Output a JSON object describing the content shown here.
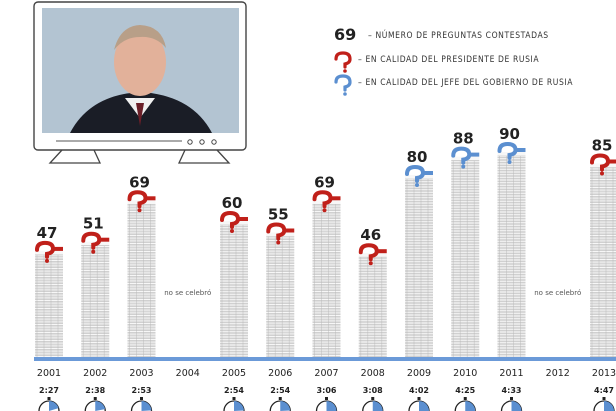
{
  "legend": {
    "number_example": "69",
    "count_label": "– NÚMERO DE PREGUNTAS CONTESTADAS",
    "president_label": "– EN CALIDAD DEL PRESIDENTE DE RUSIA",
    "government_label": "– EN CALIDAD DEL JEFE DEL GOBIERNO DE RUSIA"
  },
  "colors": {
    "president": "#c0201a",
    "government": "#5b8fd0",
    "baseline": "#6b9ad8",
    "stack_line": "#b8b8b8"
  },
  "chart_data": {
    "type": "bar",
    "categories": [
      "2001",
      "2002",
      "2003",
      "2004",
      "2005",
      "2006",
      "2007",
      "2008",
      "2009",
      "2010",
      "2011",
      "2012",
      "2013"
    ],
    "values": [
      47,
      51,
      69,
      null,
      60,
      55,
      69,
      46,
      80,
      88,
      90,
      null,
      85
    ],
    "role": [
      "president",
      "president",
      "president",
      null,
      "president",
      "president",
      "president",
      "president",
      "government",
      "government",
      "government",
      null,
      "president"
    ],
    "durations": [
      "2:27",
      "2:38",
      "2:53",
      "",
      "2:54",
      "2:54",
      "3:06",
      "3:08",
      "4:02",
      "4:25",
      "4:33",
      "",
      "4:47"
    ],
    "duration_hours": [
      2.45,
      2.63,
      2.88,
      null,
      2.9,
      2.9,
      3.1,
      3.13,
      4.03,
      4.42,
      4.55,
      null,
      4.78
    ],
    "not_held_label": "no se celebró",
    "ylim": [
      0,
      95
    ]
  }
}
